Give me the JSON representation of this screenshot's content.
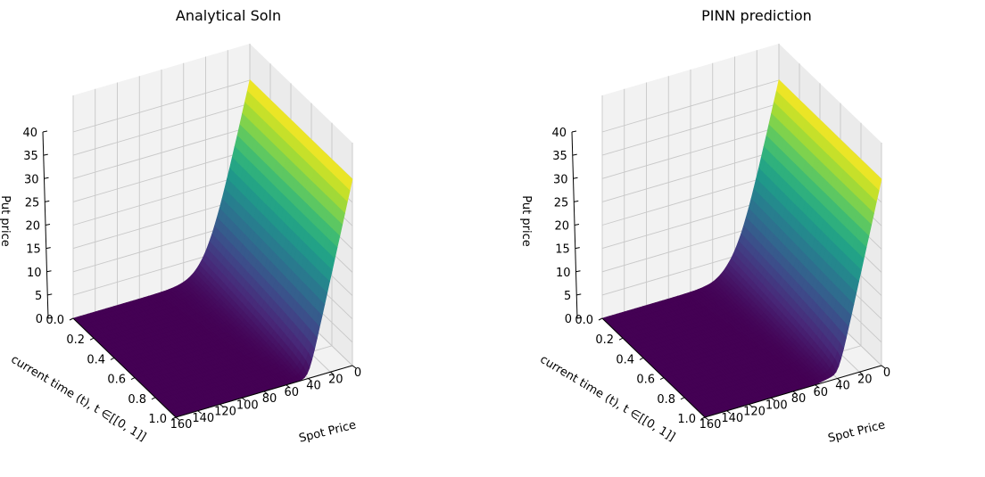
{
  "chart_data": [
    {
      "type": "surface",
      "title": "Analytical Soln",
      "xlabel": "Spot Price",
      "ylabel": "current time (t), t ∈[[0, 1]]",
      "zlabel": "Put price",
      "x_ticks": [
        "160",
        "140",
        "120",
        "100",
        "80",
        "60",
        "40",
        "20",
        "0"
      ],
      "y_ticks": [
        "0.0",
        "0.2",
        "0.4",
        "0.6",
        "0.8",
        "1.0"
      ],
      "z_ticks": [
        "0",
        "5",
        "10",
        "15",
        "20",
        "25",
        "30",
        "35",
        "40"
      ],
      "xlim": [
        0,
        160
      ],
      "ylim": [
        0,
        1
      ],
      "zlim": [
        0,
        40
      ],
      "strike": 40,
      "colormap": "viridis",
      "grid": true
    },
    {
      "type": "surface",
      "title": "PINN prediction",
      "xlabel": "Spot Price",
      "ylabel": "current time (t), t ∈[[0, 1]]",
      "zlabel": "Put price",
      "x_ticks": [
        "160",
        "140",
        "120",
        "100",
        "80",
        "60",
        "40",
        "20",
        "0"
      ],
      "y_ticks": [
        "0.0",
        "0.2",
        "0.4",
        "0.6",
        "0.8",
        "1.0"
      ],
      "z_ticks": [
        "0",
        "5",
        "10",
        "15",
        "20",
        "25",
        "30",
        "35",
        "40"
      ],
      "xlim": [
        0,
        160
      ],
      "ylim": [
        0,
        1
      ],
      "zlim": [
        0,
        40
      ],
      "strike": 40,
      "colormap": "viridis",
      "grid": true
    }
  ],
  "colors": {
    "viridis": [
      "#440154",
      "#482878",
      "#3e4989",
      "#31688e",
      "#26828e",
      "#1f9e89",
      "#35b779",
      "#6ece58",
      "#b5de2b",
      "#fde725"
    ]
  }
}
